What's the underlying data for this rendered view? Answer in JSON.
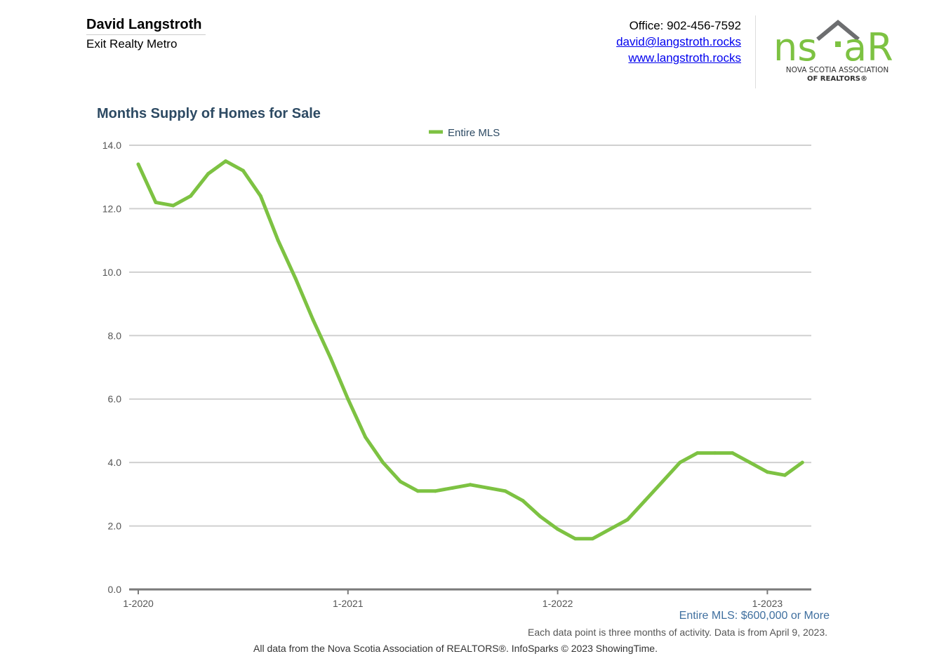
{
  "header": {
    "agent_name": "David Langstroth",
    "agent_company": "Exit Realty Metro",
    "office": "Office: 902-456-7592",
    "email": "david@langstroth.rocks",
    "website": "www.langstroth.rocks"
  },
  "logo": {
    "wordmark_left": "ns",
    "wordmark_right": "aR",
    "line1": "NOVA SCOTIA ASSOCIATION",
    "line2": "OF REALTORS®",
    "brand_green": "#7dc242",
    "roof_gray": "#6d6e70"
  },
  "chart_data": {
    "type": "line",
    "title": "Months Supply of Homes for Sale",
    "xlabel": "",
    "ylabel": "",
    "ylim": [
      0,
      14
    ],
    "yticks": [
      "0.0",
      "2.0",
      "4.0",
      "6.0",
      "8.0",
      "10.0",
      "12.0",
      "14.0"
    ],
    "xtick_labels": [
      "1-2020",
      "1-2021",
      "1-2022",
      "1-2023"
    ],
    "grid": true,
    "legend_position": "top-center",
    "x": [
      "1-2020",
      "2-2020",
      "3-2020",
      "4-2020",
      "5-2020",
      "6-2020",
      "7-2020",
      "8-2020",
      "9-2020",
      "10-2020",
      "11-2020",
      "12-2020",
      "1-2021",
      "2-2021",
      "3-2021",
      "4-2021",
      "5-2021",
      "6-2021",
      "7-2021",
      "8-2021",
      "9-2021",
      "10-2021",
      "11-2021",
      "12-2021",
      "1-2022",
      "2-2022",
      "3-2022",
      "4-2022",
      "5-2022",
      "6-2022",
      "7-2022",
      "8-2022",
      "9-2022",
      "10-2022",
      "11-2022",
      "12-2022",
      "1-2023",
      "2-2023",
      "3-2023"
    ],
    "series": [
      {
        "name": "Entire MLS",
        "color": "#7dc242",
        "values": [
          13.4,
          12.2,
          12.1,
          12.4,
          13.1,
          13.5,
          13.2,
          12.4,
          11.0,
          9.8,
          8.5,
          7.3,
          6.0,
          4.8,
          4.0,
          3.4,
          3.1,
          3.1,
          3.2,
          3.3,
          3.2,
          3.1,
          2.8,
          2.3,
          1.9,
          1.6,
          1.6,
          1.9,
          2.2,
          2.8,
          3.4,
          4.0,
          4.3,
          4.3,
          4.3,
          4.0,
          3.7,
          3.6,
          4.0
        ]
      }
    ]
  },
  "subset_label": "Entire MLS: $600,000 or More",
  "note": "Each data point is three months of activity. Data is from April 9, 2023.",
  "footer": "All data from the Nova Scotia Association of REALTORS®. InfoSparks © 2023 ShowingTime."
}
